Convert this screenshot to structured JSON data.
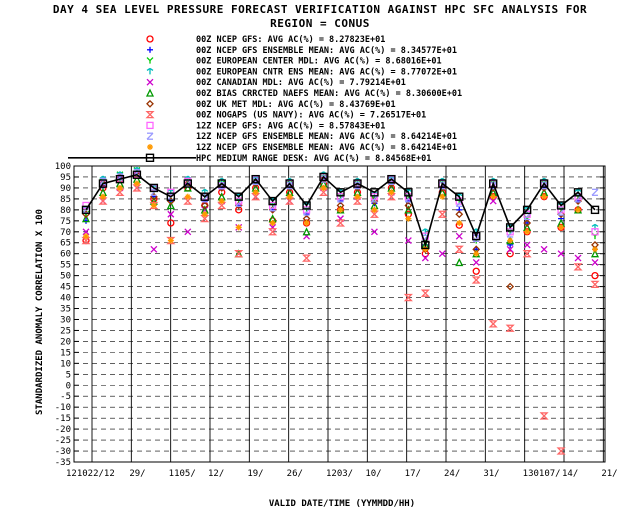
{
  "chart_data": {
    "type": "scatter",
    "title": "DAY 4 SEA LEVEL PRESSURE FORECAST VERIFICATION AGAINST HPC SFC ANALYSIS FOR",
    "subtitle": "REGION = CONUS",
    "xlabel": "VALID DATE/TIME (YYMMDD/HH)",
    "ylabel": "STANDARDIZED ANOMALY CORRELATION X 100",
    "ylim": [
      -35,
      100
    ],
    "yticks": [
      100,
      95,
      90,
      85,
      80,
      75,
      70,
      65,
      60,
      55,
      50,
      45,
      40,
      35,
      30,
      25,
      20,
      15,
      10,
      5,
      0,
      -5,
      -10,
      -15,
      -20,
      -25,
      -30,
      -35
    ],
    "xticks": [
      "121022/12",
      "29/",
      "1105/",
      "12/",
      "19/",
      "26/",
      "1203/",
      "10/",
      "17/",
      "24/",
      "31/",
      "130107/",
      "14/",
      "21/"
    ],
    "grid": true,
    "series": [
      {
        "name": "00Z NCEP GFS: AVG AC(%) =  8.27823E+01",
        "marker": "circle",
        "color": "#ff0000",
        "values": [
          66,
          90,
          94,
          96,
          85,
          74,
          90,
          82,
          88,
          80,
          90,
          75,
          88,
          74,
          92,
          80,
          88,
          85,
          90,
          78,
          60,
          88,
          73,
          52,
          86,
          60,
          70,
          86,
          72,
          80,
          50
        ]
      },
      {
        "name": "00Z NCEP GFS ENSEMBLE MEAN: AVG AC(%) =  8.34577E+01",
        "marker": "plus",
        "color": "#0000ff",
        "values": [
          75,
          91,
          95,
          97,
          86,
          84,
          92,
          84,
          90,
          82,
          92,
          80,
          91,
          78,
          94,
          84,
          90,
          83,
          92,
          84,
          64,
          90,
          80,
          62,
          90,
          64,
          74,
          90,
          76,
          84,
          62
        ]
      },
      {
        "name": "00Z EUROPEAN CENTER MDL: AVG AC(%) =  8.68016E+01",
        "marker": "y",
        "color": "#00cc00",
        "values": [
          78,
          93,
          96,
          98,
          88,
          86,
          93,
          86,
          92,
          84,
          93,
          82,
          92,
          80,
          95,
          86,
          92,
          85,
          93,
          86,
          66,
          92,
          84,
          66,
          92,
          70,
          76,
          92,
          80,
          86,
          68
        ]
      },
      {
        "name": "00Z EUROPEAN CNTR ENS MEAN: AVG AC(%) =  8.77072E+01",
        "marker": "arrow",
        "color": "#00bbbb",
        "values": [
          80,
          94,
          96,
          98,
          90,
          88,
          94,
          88,
          93,
          86,
          94,
          84,
          93,
          82,
          96,
          88,
          93,
          87,
          94,
          88,
          70,
          93,
          86,
          70,
          93,
          72,
          80,
          93,
          82,
          88,
          72
        ]
      },
      {
        "name": "00Z CANADIAN MDL: AVG AC(%) =  7.79214E+01",
        "marker": "x",
        "color": "#cc00cc",
        "values": [
          70,
          84,
          90,
          90,
          62,
          78,
          70,
          80,
          84,
          72,
          86,
          72,
          84,
          68,
          90,
          76,
          86,
          70,
          88,
          66,
          58,
          60,
          68,
          56,
          84,
          62,
          64,
          62,
          60,
          58,
          56
        ]
      },
      {
        "name": "00Z BIAS CRRCTED NAEFS MEAN: AVG AC(%) =  8.30600E+01",
        "marker": "triangle",
        "color": "#009900",
        "values": [
          76,
          88,
          92,
          94,
          84,
          82,
          90,
          80,
          86,
          60,
          90,
          76,
          88,
          70,
          92,
          80,
          88,
          82,
          90,
          80,
          64,
          88,
          56,
          60,
          88,
          66,
          72,
          88,
          74,
          80,
          60
        ]
      },
      {
        "name": "00Z UK MET MDL: AVG AC(%) =  8.43769E+01",
        "marker": "diamond",
        "color": "#993300",
        "values": [
          78,
          92,
          95,
          96,
          86,
          84,
          92,
          82,
          90,
          82,
          92,
          80,
          90,
          76,
          94,
          82,
          90,
          84,
          92,
          82,
          62,
          90,
          78,
          62,
          90,
          45,
          74,
          90,
          78,
          84,
          64
        ]
      },
      {
        "name": "00Z NOGAPS (US NAVY): AVG AC(%) =  7.26517E+01",
        "marker": "hourglass",
        "color": "#ff6666",
        "values": [
          66,
          84,
          88,
          90,
          82,
          66,
          84,
          76,
          82,
          60,
          86,
          70,
          84,
          58,
          88,
          74,
          84,
          78,
          86,
          40,
          42,
          78,
          62,
          48,
          28,
          26,
          60,
          -14,
          -30,
          54,
          46
        ]
      },
      {
        "name": "12Z NCEP GFS: AVG AC(%) =  8.57843E+01",
        "marker": "square",
        "color": "#ff66ff",
        "values": [
          82,
          92,
          94,
          96,
          90,
          88,
          93,
          86,
          91,
          84,
          94,
          82,
          92,
          80,
          95,
          86,
          92,
          86,
          94,
          86,
          68,
          92,
          84,
          68,
          92,
          70,
          78,
          92,
          80,
          86,
          70
        ]
      },
      {
        "name": "12Z NCEP GFS ENSEMBLE MEAN: AVG AC(%) =  8.64214E+01",
        "marker": "z",
        "color": "#9999ff",
        "values": [
          80,
          93,
          95,
          97,
          88,
          86,
          92,
          85,
          91,
          83,
          93,
          81,
          91,
          79,
          94,
          85,
          91,
          85,
          93,
          85,
          67,
          91,
          83,
          67,
          91,
          69,
          77,
          91,
          79,
          85,
          88
        ]
      },
      {
        "name": "12Z NCEP GFS ENSEMBLE MEAN: AVG AC(%) =  8.64214E+01",
        "marker": "star",
        "color": "#ff9900",
        "values": [
          68,
          86,
          90,
          92,
          82,
          66,
          86,
          78,
          84,
          72,
          88,
          74,
          86,
          74,
          90,
          80,
          86,
          80,
          88,
          76,
          62,
          86,
          74,
          60,
          86,
          66,
          70,
          86,
          72,
          80,
          62
        ]
      },
      {
        "name": "HPC MEDIUM RANGE DESK: AVG AC(%) =  8.84568E+01",
        "marker": "box",
        "color": "#000000",
        "line": true,
        "values": [
          80,
          92,
          94,
          96,
          90,
          86,
          92,
          86,
          92,
          86,
          94,
          84,
          92,
          82,
          95,
          88,
          92,
          88,
          94,
          88,
          64,
          92,
          86,
          68,
          92,
          72,
          80,
          92,
          82,
          88,
          80
        ]
      }
    ]
  }
}
